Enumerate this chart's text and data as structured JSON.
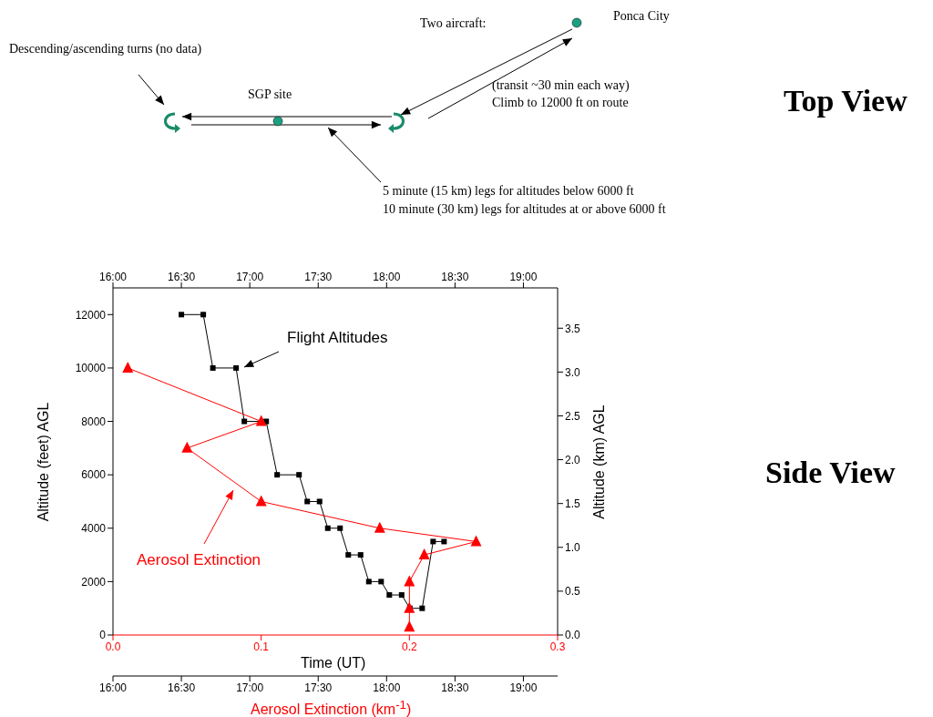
{
  "chart_data": {
    "type": "line",
    "xlabel": "Time (UT)",
    "ylabel": "Altitude (feet) AGL",
    "y2label": "Altitude (km) AGL",
    "x2label": "Aerosol Extinction (km$^{-1}$)",
    "annotations": [
      "Descending/ascending turns (no data)",
      "SGP site",
      "Two aircraft:",
      "Ponca City",
      "(transit ~30 min each way)",
      "Climb to 12000 ft on route",
      "5 minute (15 km) legs for altitudes below 6000 ft",
      "10 minute (30 km) legs for altitudes at or above 6000 ft",
      "Top View",
      "Side View"
    ],
    "xlim": [
      16,
      19.25
    ],
    "xticks": [
      {
        "value": 16,
        "label": "16:00"
      },
      {
        "value": 16.5,
        "label": "16:30"
      },
      {
        "value": 17,
        "label": "17:00"
      },
      {
        "value": 17.5,
        "label": "17:30"
      },
      {
        "value": 18,
        "label": "18:00"
      },
      {
        "value": 18.5,
        "label": "18:30"
      },
      {
        "value": 19,
        "label": "19:00"
      }
    ],
    "x2lim": [
      0,
      0.3
    ],
    "x2ticks": [
      {
        "value": 0,
        "label": "0.0"
      },
      0.1,
      0.2,
      0.3
    ],
    "ylim": [
      0,
      13000
    ],
    "yticks": [
      0,
      2000,
      4000,
      6000,
      8000,
      10000,
      12000
    ],
    "y2lim": [
      0,
      3.96
    ],
    "y2ticks": [
      {
        "value": 0,
        "label": "0.0"
      },
      0.5,
      {
        "value": 1,
        "label": "1.0"
      },
      1.5,
      {
        "value": 2,
        "label": "2.0"
      },
      2.5,
      {
        "value": 3,
        "label": "3.0"
      },
      3.5
    ],
    "series": [
      {
        "name": "Flight Altitudes",
        "color": "#000000",
        "marker": "square",
        "x": [
          16.5,
          16.66,
          16.73,
          16.9,
          16.96,
          17.12,
          17.2,
          17.36,
          17.42,
          17.51,
          17.57,
          17.66,
          17.72,
          17.81,
          17.87,
          17.96,
          18.02,
          18.11,
          18.17,
          18.26,
          18.34,
          18.42
        ],
        "values": [
          12000,
          12000,
          10000,
          10000,
          8000,
          8000,
          6000,
          6000,
          5000,
          5000,
          4000,
          4000,
          3000,
          3000,
          2000,
          2000,
          1500,
          1500,
          1000,
          1000,
          3500,
          3500
        ]
      },
      {
        "name": "Aerosol Extinction",
        "color": "#ff0000",
        "marker": "triangle",
        "axis": "x2",
        "x": [
          0.01,
          0.1,
          0.05,
          0.1,
          0.18,
          0.245,
          0.21,
          0.2,
          0.2,
          0.2
        ],
        "values": [
          10000,
          8000,
          7000,
          5000,
          4000,
          3500,
          3000,
          2000,
          1000,
          300
        ]
      }
    ]
  }
}
